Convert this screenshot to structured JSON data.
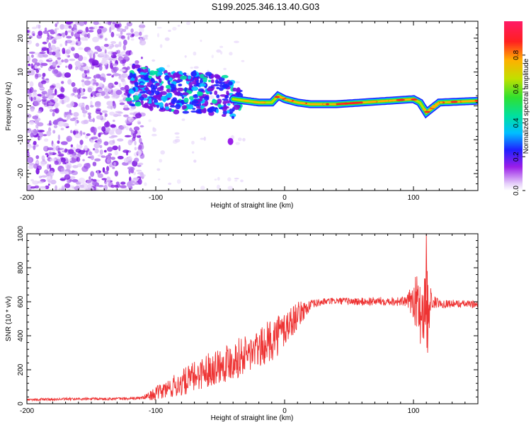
{
  "title": "S199.2025.346.13.40.G03",
  "chart_data": [
    {
      "type": "heatmap",
      "name": "spectrogram",
      "xlabel": "Height of straight line (km)",
      "ylabel": "Frequency (Hz)",
      "xlim": [
        -200,
        150
      ],
      "ylim": [
        -25,
        25
      ],
      "xticks": [
        -200,
        -100,
        0,
        100
      ],
      "yticks": [
        -20,
        -10,
        0,
        10,
        20
      ],
      "colorbar": {
        "label": "Normalized spectral amplitude",
        "range": [
          0,
          1
        ],
        "ticks": [
          "0.0",
          "0.2",
          "0.4",
          "0.6",
          "0.8"
        ],
        "tick_values": [
          0.0,
          0.2,
          0.4,
          0.6,
          0.8
        ],
        "colors": [
          "#ffffff",
          "#e6d0fa",
          "#9a1ee8",
          "#2020ff",
          "#00bfff",
          "#00e0a0",
          "#30e030",
          "#c0e000",
          "#ffb000",
          "#ff2020",
          "#ff1a66"
        ]
      },
      "signal_ridge": {
        "x": [
          -120,
          -100,
          -80,
          -60,
          -50,
          -40,
          -30,
          -20,
          -10,
          -5,
          0,
          10,
          20,
          40,
          60,
          80,
          100,
          105,
          110,
          120,
          150
        ],
        "y": [
          6,
          5,
          4,
          4,
          3,
          2,
          1.5,
          1,
          1,
          3,
          2,
          1,
          0.5,
          0.5,
          1,
          1.5,
          2,
          1,
          -2,
          1,
          1.5
        ],
        "peak_amplitude_region_x": [
          40,
          60
        ]
      }
    },
    {
      "type": "line",
      "name": "snr",
      "xlabel": "Height of straight line (km)",
      "ylabel": "SNR (10 * v/v)",
      "xlim": [
        -200,
        150
      ],
      "ylim": [
        0,
        1000
      ],
      "xticks": [
        -200,
        -100,
        0,
        100
      ],
      "yticks": [
        0,
        200,
        400,
        600,
        800,
        1000
      ],
      "color": "#ee3333",
      "envelope": {
        "x": [
          -200,
          -120,
          -110,
          -100,
          -80,
          -60,
          -40,
          -20,
          -10,
          0,
          10,
          20,
          30,
          40,
          60,
          80,
          95,
          100,
          105,
          110,
          115,
          120,
          150
        ],
        "baseline": [
          25,
          30,
          35,
          60,
          120,
          200,
          260,
          320,
          380,
          440,
          520,
          580,
          600,
          605,
          600,
          605,
          600,
          620,
          560,
          560,
          600,
          590,
          585
        ],
        "amplitude": [
          8,
          8,
          10,
          40,
          80,
          100,
          120,
          110,
          130,
          120,
          80,
          30,
          20,
          20,
          25,
          25,
          30,
          120,
          220,
          260,
          40,
          25,
          20
        ]
      },
      "peaks": [
        {
          "x": 110,
          "y": 1000
        },
        {
          "x": 111,
          "y": 300
        }
      ]
    }
  ]
}
